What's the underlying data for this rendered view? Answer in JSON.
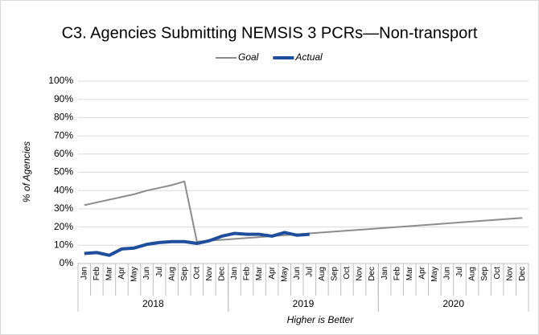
{
  "chart_data": {
    "type": "line",
    "title": "C3. Agencies Submitting NEMSIS 3 PCRs—Non-transport",
    "y_label": "% of Agencies",
    "x_label": "Higher is Better",
    "categories": [
      "Jan",
      "Feb",
      "Mar",
      "Apr",
      "May",
      "Jun",
      "Jul",
      "Aug",
      "Sep",
      "Oct",
      "Nov",
      "Dec",
      "Jan",
      "Feb",
      "Mar",
      "Apr",
      "May",
      "Jun",
      "Jul",
      "Aug",
      "Sep",
      "Oct",
      "Nov",
      "Dec",
      "Jan",
      "Feb",
      "Mar",
      "Apr",
      "May",
      "Jun",
      "Jul",
      "Aug",
      "Sep",
      "Oct",
      "Nov",
      "Dec"
    ],
    "groups": [
      {
        "name": "2018",
        "count": 12
      },
      {
        "name": "2019",
        "count": 12
      },
      {
        "name": "2020",
        "count": 12
      }
    ],
    "series": [
      {
        "name": "Goal",
        "color": "#8c8c8c",
        "width": 2,
        "values": [
          32,
          33.5,
          35,
          36.5,
          38,
          40,
          41.5,
          43,
          45,
          12,
          12.5,
          13,
          13.5,
          14,
          14.5,
          15,
          15.5,
          16,
          16.5,
          17,
          17.5,
          18,
          18.5,
          19,
          19.5,
          20,
          20.5,
          21,
          21.5,
          22,
          22.5,
          23,
          23.5,
          24,
          24.5,
          25
        ]
      },
      {
        "name": "Actual",
        "color": "#1f4e9c",
        "width": 4,
        "values": [
          5.5,
          6,
          4.5,
          8,
          8.5,
          10.5,
          11.5,
          12,
          12,
          11,
          12.5,
          15,
          16.5,
          16,
          16,
          15,
          17,
          15.5,
          16,
          null,
          null,
          null,
          null,
          null,
          null,
          null,
          null,
          null,
          null,
          null,
          null,
          null,
          null,
          null,
          null,
          null
        ]
      }
    ],
    "ylim": [
      0,
      100
    ],
    "yticks": [
      {
        "value": 0,
        "label": "0%"
      },
      {
        "value": 10,
        "label": "10%"
      },
      {
        "value": 20,
        "label": "20%"
      },
      {
        "value": 30,
        "label": "30%"
      },
      {
        "value": 40,
        "label": "40%"
      },
      {
        "value": 50,
        "label": "50%"
      },
      {
        "value": 60,
        "label": "60%"
      },
      {
        "value": 70,
        "label": "70%"
      },
      {
        "value": 80,
        "label": "80%"
      },
      {
        "value": 90,
        "label": "90%"
      },
      {
        "value": 100,
        "label": "100%"
      }
    ],
    "grid": true
  }
}
